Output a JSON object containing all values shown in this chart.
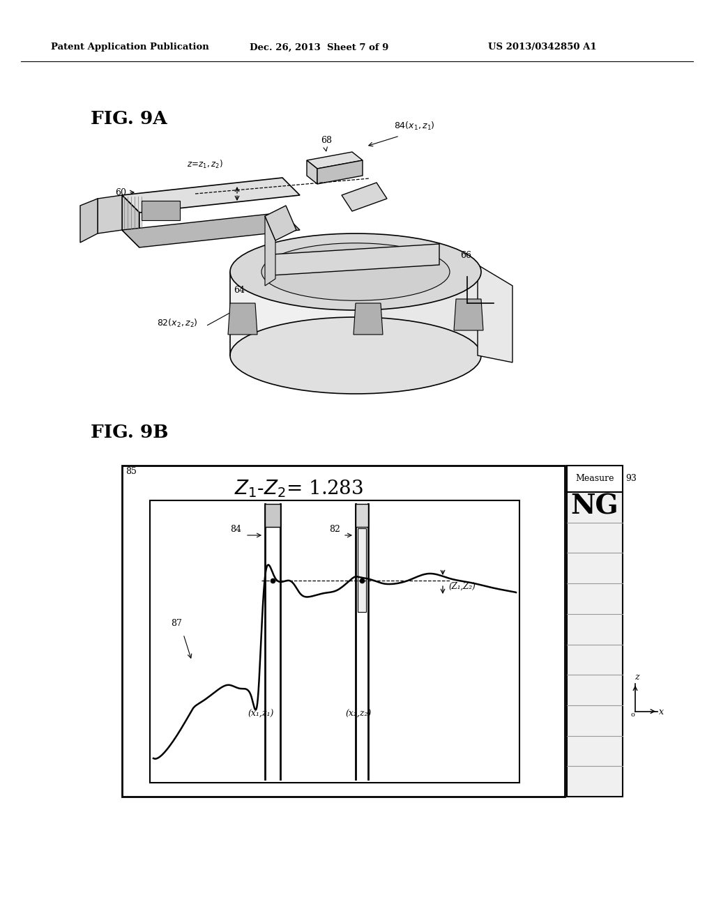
{
  "bg_color": "#ffffff",
  "header_left": "Patent Application Publication",
  "header_mid": "Dec. 26, 2013  Sheet 7 of 9",
  "header_right": "US 2013/0342850 A1",
  "fig9a_label": "FIG. 9A",
  "fig9b_label": "FIG. 9B",
  "label_60": "60",
  "label_64": "64",
  "label_66": "66",
  "label_68": "68",
  "label_82": "82(x₂,z₂)",
  "label_84": "84(x₁,z₁)",
  "label_85": "85",
  "label_87": "87",
  "label_93": "93",
  "label_NG": "NG",
  "label_Measure": "Measure",
  "label_z1z2_eq": "Z₁-Z₂= 1.283",
  "label_x1z1": "(x₁,z₁)",
  "label_x2z2": "(x₂,z₂)",
  "label_z1z2_coord": "(Z₁,Z₂)",
  "label_zzz": "z=z₁,z₂)"
}
